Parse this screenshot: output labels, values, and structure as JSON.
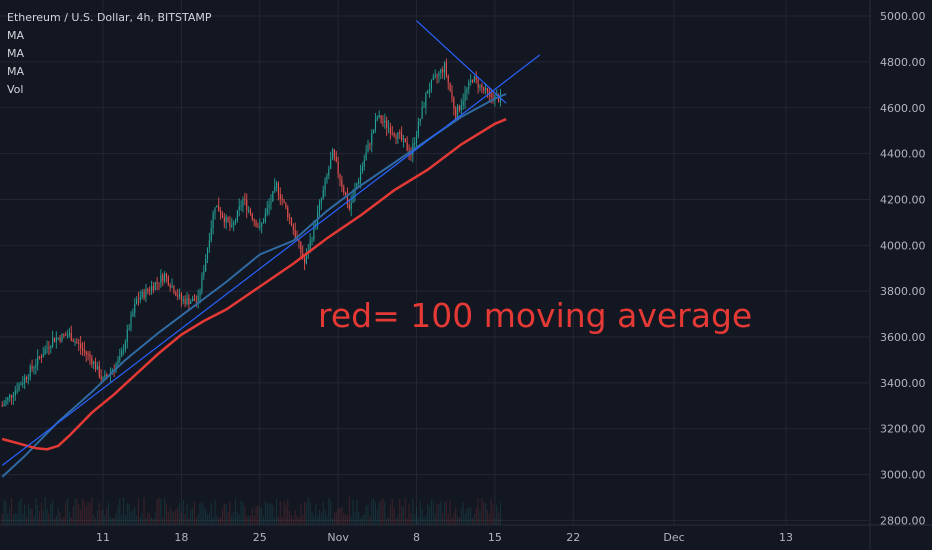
{
  "header": {
    "symbol_title": "Ethereum / U.S. Dollar, 4h, BITSTAMP",
    "indicators": [
      "MA",
      "MA",
      "MA",
      "Vol"
    ]
  },
  "annotation": "red= 100 moving average",
  "colors": {
    "background": "#131722",
    "grid": "#242733",
    "candle_up": "#26a69a",
    "candle_down": "#ef5350",
    "ma_red": "#e53935",
    "ma_blue": "#2f6aa3",
    "trendline": "#2962ff"
  },
  "chart_data": {
    "type": "candlestick",
    "timeframe": "4h",
    "exchange": "BITSTAMP",
    "y_ticks": [
      "5000.00",
      "4800.00",
      "4600.00",
      "4400.00",
      "4200.00",
      "4000.00",
      "3800.00",
      "3600.00",
      "3400.00",
      "3200.00",
      "3000.00",
      "2800.00"
    ],
    "y_tick_values": [
      5000,
      4800,
      4600,
      4400,
      4200,
      4000,
      3800,
      3600,
      3400,
      3200,
      3000,
      2800
    ],
    "ylim": [
      2780,
      5070
    ],
    "x_ticks": [
      "11",
      "18",
      "25",
      "Nov",
      "8",
      "15",
      "22",
      "Dec",
      "13"
    ],
    "x_tick_days": [
      11,
      18,
      25,
      32,
      39,
      46,
      53,
      62,
      72
    ],
    "xlim_days": [
      1.8,
      79.5
    ],
    "day_axis_note": "days counted from Oct 0; Nov 1 = 32, Dec 1 = 62",
    "price_path": [
      [
        2.0,
        3300
      ],
      [
        4.0,
        3420
      ],
      [
        6.5,
        3590
      ],
      [
        8.0,
        3610
      ],
      [
        10.0,
        3500
      ],
      [
        11.0,
        3410
      ],
      [
        12.5,
        3500
      ],
      [
        14.0,
        3760
      ],
      [
        16.5,
        3870
      ],
      [
        18.0,
        3760
      ],
      [
        19.5,
        3760
      ],
      [
        21.0,
        4180
      ],
      [
        22.5,
        4070
      ],
      [
        23.5,
        4200
      ],
      [
        25.0,
        4070
      ],
      [
        26.5,
        4260
      ],
      [
        27.8,
        4100
      ],
      [
        29.0,
        3920
      ],
      [
        30.5,
        4200
      ],
      [
        31.5,
        4400
      ],
      [
        33.0,
        4160
      ],
      [
        34.0,
        4320
      ],
      [
        35.5,
        4560
      ],
      [
        37.5,
        4470
      ],
      [
        38.5,
        4400
      ],
      [
        40.0,
        4680
      ],
      [
        41.5,
        4780
      ],
      [
        42.5,
        4570
      ],
      [
        44.0,
        4730
      ],
      [
        45.5,
        4650
      ],
      [
        46.5,
        4640
      ]
    ],
    "ma_red_path": [
      [
        2.0,
        3155
      ],
      [
        3.5,
        3135
      ],
      [
        5.0,
        3115
      ],
      [
        6.0,
        3110
      ],
      [
        7.0,
        3125
      ],
      [
        8.0,
        3170
      ],
      [
        10.0,
        3270
      ],
      [
        12.0,
        3350
      ],
      [
        14.0,
        3440
      ],
      [
        16.0,
        3530
      ],
      [
        18.0,
        3610
      ],
      [
        20.0,
        3670
      ],
      [
        22.0,
        3720
      ],
      [
        25.0,
        3820
      ],
      [
        28.0,
        3920
      ],
      [
        31.0,
        4030
      ],
      [
        34.0,
        4130
      ],
      [
        37.0,
        4240
      ],
      [
        40.0,
        4330
      ],
      [
        43.0,
        4440
      ],
      [
        46.0,
        4530
      ],
      [
        47.0,
        4550
      ]
    ],
    "ma_blue_path": [
      [
        2.0,
        2990
      ],
      [
        4.0,
        3080
      ],
      [
        7.0,
        3230
      ],
      [
        10.0,
        3360
      ],
      [
        13.0,
        3500
      ],
      [
        16.0,
        3620
      ],
      [
        19.0,
        3730
      ],
      [
        22.0,
        3840
      ],
      [
        25.0,
        3960
      ],
      [
        28.0,
        4020
      ],
      [
        31.0,
        4150
      ],
      [
        34.0,
        4260
      ],
      [
        37.0,
        4360
      ],
      [
        40.0,
        4460
      ],
      [
        43.0,
        4560
      ],
      [
        46.0,
        4640
      ],
      [
        47.0,
        4660
      ]
    ],
    "trendlines": [
      {
        "name": "ascending",
        "points": [
          [
            2.0,
            3040
          ],
          [
            50.0,
            4830
          ]
        ]
      },
      {
        "name": "descending",
        "points": [
          [
            39.0,
            4980
          ],
          [
            47.0,
            4620
          ]
        ]
      }
    ],
    "grid": true,
    "volume_shown": true
  }
}
